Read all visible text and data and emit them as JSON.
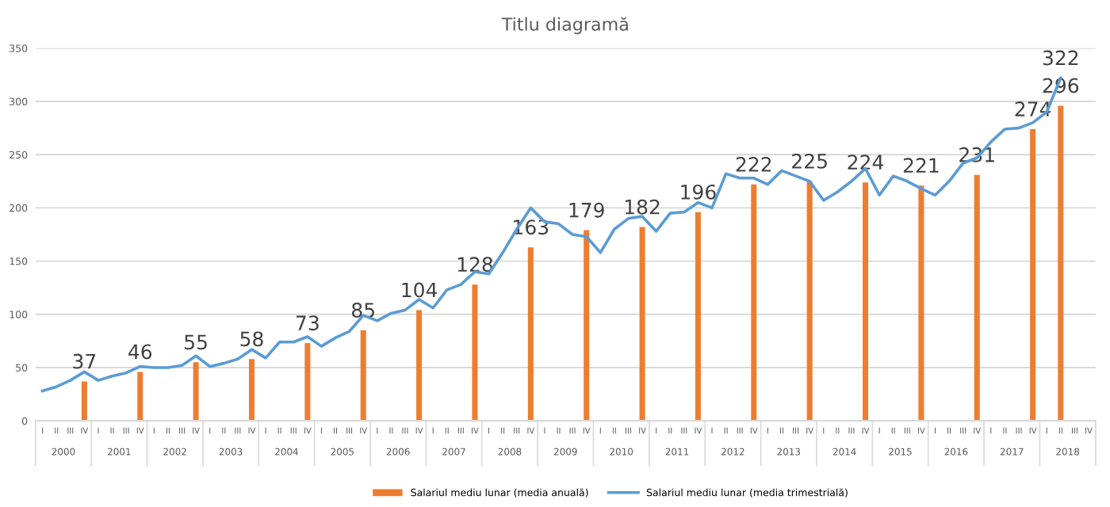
{
  "chart_data": {
    "type": "bar",
    "title": "Titlu diagramă",
    "categories": [
      "I",
      "II",
      "III",
      "IV",
      "I",
      "II",
      "III",
      "IV",
      "I",
      "II",
      "III",
      "IV",
      "I",
      "II",
      "III",
      "IV",
      "I",
      "II",
      "III",
      "IV",
      "I",
      "II",
      "III",
      "IV",
      "I",
      "II",
      "III",
      "IV",
      "I",
      "II",
      "III",
      "IV",
      "I",
      "II",
      "III",
      "IV",
      "I",
      "II",
      "III",
      "IV",
      "I",
      "II",
      "III",
      "IV",
      "I",
      "II",
      "III",
      "IV",
      "I",
      "II",
      "III",
      "IV",
      "I",
      "II",
      "III",
      "IV",
      "I",
      "II",
      "III",
      "IV",
      "I",
      "II",
      "III",
      "IV",
      "I",
      "II",
      "III",
      "IV",
      "I",
      "II",
      "III",
      "IV",
      "I",
      "II",
      "III",
      "IV"
    ],
    "annotations": [
      "2000",
      "2001",
      "2002",
      "2003",
      "2004",
      "2005",
      "2006",
      "2007",
      "2008",
      "2009",
      "2010",
      "2011",
      "2012",
      "2013",
      "2014",
      "2015",
      "2016",
      "2017",
      "2018"
    ],
    "series": [
      {
        "name": "Salariul mediu lunar (media anuală)",
        "color": "#ed7d31",
        "values": [
          null,
          null,
          null,
          37,
          null,
          null,
          null,
          46,
          null,
          null,
          null,
          55,
          null,
          null,
          null,
          58,
          null,
          null,
          null,
          73,
          null,
          null,
          null,
          85,
          null,
          null,
          null,
          104,
          null,
          null,
          null,
          128,
          null,
          null,
          null,
          163,
          null,
          null,
          null,
          179,
          null,
          null,
          null,
          182,
          null,
          null,
          null,
          196,
          null,
          null,
          null,
          222,
          null,
          null,
          null,
          225,
          null,
          null,
          null,
          224,
          null,
          null,
          null,
          221,
          null,
          null,
          null,
          231,
          null,
          null,
          null,
          274,
          null,
          296,
          null,
          null
        ],
        "value_labels": [
          null,
          null,
          null,
          "37",
          null,
          null,
          null,
          "46",
          null,
          null,
          null,
          "55",
          null,
          null,
          null,
          "58",
          null,
          null,
          null,
          "73",
          null,
          null,
          null,
          "85",
          null,
          null,
          null,
          "104",
          null,
          null,
          null,
          "128",
          null,
          null,
          null,
          "163",
          null,
          null,
          null,
          "179",
          null,
          null,
          null,
          "182",
          null,
          null,
          null,
          "196",
          null,
          null,
          null,
          "222",
          null,
          null,
          null,
          "225",
          null,
          null,
          null,
          "224",
          null,
          null,
          null,
          "221",
          null,
          null,
          null,
          "231",
          null,
          null,
          null,
          "274",
          null,
          "296",
          null,
          null
        ]
      },
      {
        "name": "Salariul mediu lunar (media trimestrială)",
        "type": "line",
        "color": "#5b9bd5",
        "values": [
          28,
          32,
          38,
          46,
          38,
          42,
          45,
          51,
          50,
          50,
          52,
          61,
          51,
          54,
          58,
          67,
          59,
          74,
          74,
          79,
          70,
          78,
          84,
          99,
          94,
          101,
          104,
          114,
          106,
          123,
          128,
          140,
          138,
          158,
          180,
          200,
          187,
          185,
          175,
          173,
          158,
          180,
          190,
          192,
          178,
          195,
          196,
          205,
          200,
          232,
          228,
          228,
          222,
          235,
          230,
          225,
          207,
          215,
          225,
          237,
          212,
          230,
          225,
          218,
          212,
          225,
          242,
          247,
          262,
          274,
          275,
          280,
          290,
          322,
          null,
          null
        ],
        "value_labels": [
          null,
          null,
          null,
          null,
          null,
          null,
          null,
          null,
          null,
          null,
          null,
          null,
          null,
          null,
          null,
          null,
          null,
          null,
          null,
          null,
          null,
          null,
          null,
          null,
          null,
          null,
          null,
          null,
          null,
          null,
          null,
          null,
          null,
          null,
          null,
          null,
          null,
          null,
          null,
          null,
          null,
          null,
          null,
          null,
          null,
          null,
          null,
          null,
          null,
          null,
          null,
          null,
          null,
          null,
          null,
          null,
          null,
          null,
          null,
          null,
          null,
          null,
          null,
          null,
          null,
          null,
          null,
          null,
          null,
          null,
          null,
          null,
          null,
          "322",
          null,
          null
        ]
      }
    ],
    "ylim": [
      0,
      350
    ],
    "yticks": [
      0,
      50,
      100,
      150,
      200,
      250,
      300,
      350
    ],
    "grid": "y",
    "legend": "bottom",
    "marker": "none",
    "line_style": "solid"
  }
}
